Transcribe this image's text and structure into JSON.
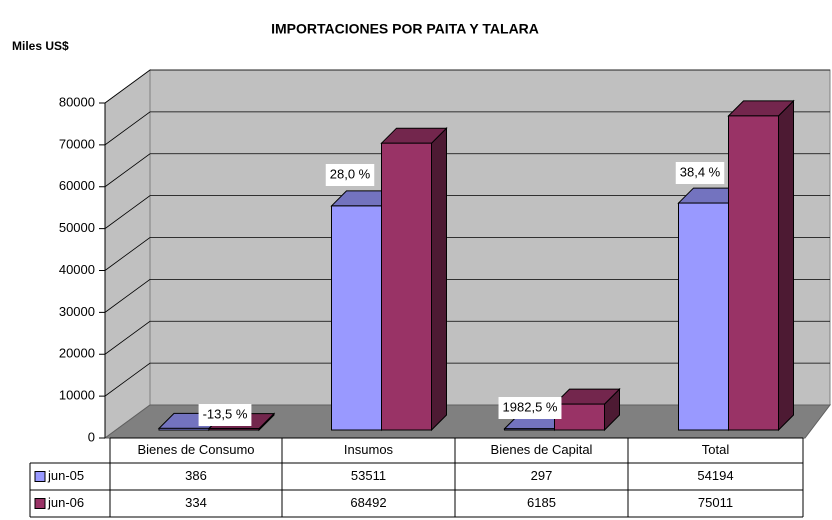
{
  "chart_data": {
    "type": "bar3d",
    "title": "IMPORTACIONES POR PAITA Y TALARA",
    "y_label": "Miles US$",
    "categories": [
      "Bienes de Consumo",
      "Insumos",
      "Bienes de Capital",
      "Total"
    ],
    "series": [
      {
        "name": "jun-05",
        "color": "#9999ff",
        "values": [
          386,
          53511,
          297,
          54194
        ]
      },
      {
        "name": "jun-06",
        "color": "#993366",
        "values": [
          334,
          68492,
          6185,
          75011
        ]
      }
    ],
    "annotations": [
      "-13,5 %",
      "28,0 %",
      "1982,5 %",
      "38,4 %"
    ],
    "ylim": [
      0,
      80000
    ],
    "yticks": [
      0,
      10000,
      20000,
      30000,
      40000,
      50000,
      60000,
      70000,
      80000
    ],
    "grid": true
  }
}
